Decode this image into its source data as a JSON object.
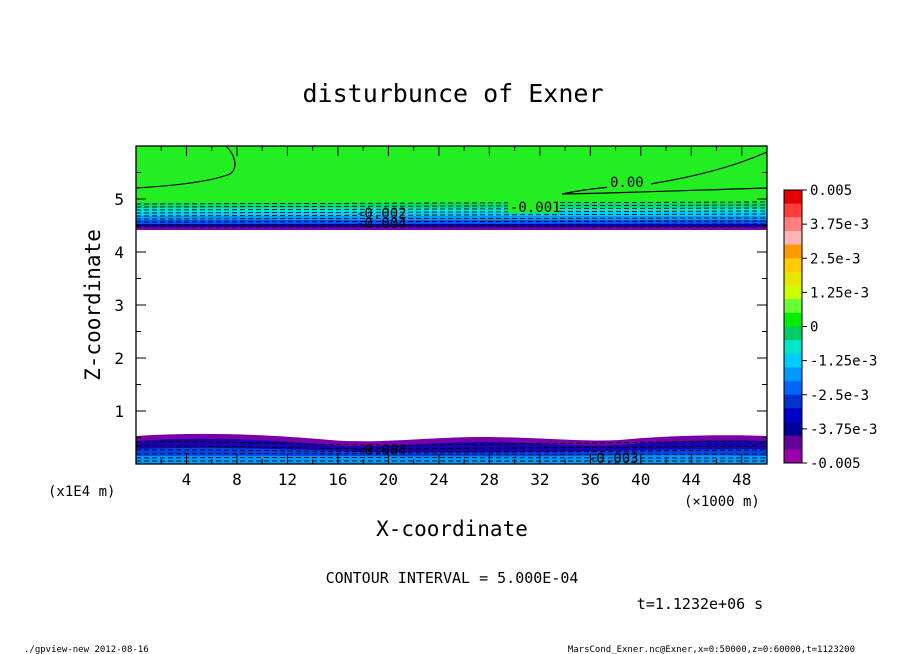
{
  "chart_data": {
    "type": "contour",
    "title": "disturbunce of Exner",
    "xlabel": "X-coordinate",
    "ylabel": "Z-coordinate",
    "x_unit": "(×1000 m)",
    "y_unit": "(x1E4 m)",
    "xlim": [
      0,
      50
    ],
    "ylim": [
      0,
      6
    ],
    "x_ticks": [
      "4",
      "8",
      "12",
      "16",
      "20",
      "24",
      "28",
      "32",
      "36",
      "40",
      "44",
      "48"
    ],
    "y_ticks": [
      "1",
      "2",
      "3",
      "4",
      "5"
    ],
    "contour_labels": [
      "0.00",
      "-0.001",
      "-0.002",
      "-0.004",
      "-0.004",
      "-0.003"
    ],
    "colorbar": {
      "labels": [
        "0.005",
        "3.75e-3",
        "2.5e-3",
        "1.25e-3",
        "0",
        "-1.25e-3",
        "-2.5e-3",
        "-3.75e-3",
        "-0.005"
      ],
      "colors": [
        "#e60000",
        "#ff3c3c",
        "#ff7f7f",
        "#ffb5b5",
        "#ff9900",
        "#ffcc00",
        "#e6e600",
        "#ccff00",
        "#66ff33",
        "#00ee00",
        "#00cc66",
        "#00e6cc",
        "#00ccff",
        "#0099ff",
        "#0066ff",
        "#0033cc",
        "#0000cc",
        "#000099",
        "#660099",
        "#9900aa"
      ]
    },
    "contour_interval": "CONTOUR INTERVAL = 5.000E-04",
    "time_label": "t=1.1232e+06 s"
  },
  "footer": {
    "left": "./gpview-new  2012-08-16",
    "right": "MarsCond_Exner.nc@Exner,x=0:50000,z=0:60000,t=1123200"
  }
}
